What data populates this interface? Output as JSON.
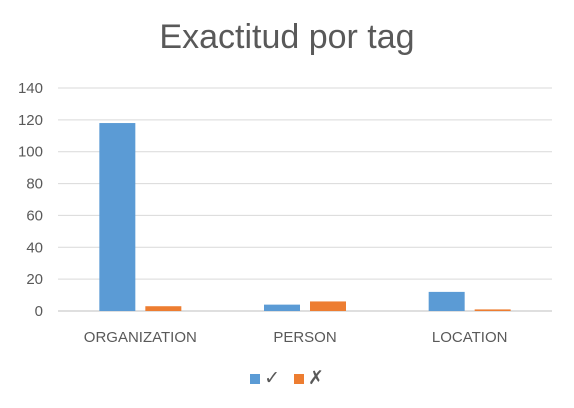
{
  "chart_data": {
    "type": "bar",
    "title": "Exactitud por tag",
    "xlabel": "",
    "ylabel": "",
    "categories": [
      "ORGANIZATION",
      "PERSON",
      "LOCATION"
    ],
    "series": [
      {
        "name": "✓",
        "values": [
          118,
          4,
          12
        ],
        "color": "#5B9BD5"
      },
      {
        "name": "✗",
        "values": [
          3,
          6,
          1
        ],
        "color": "#ED7D31"
      }
    ],
    "ylim": [
      0,
      140
    ],
    "yticks": [
      0,
      20,
      40,
      60,
      80,
      100,
      120,
      140
    ],
    "grid": true,
    "legend_position": "bottom"
  }
}
